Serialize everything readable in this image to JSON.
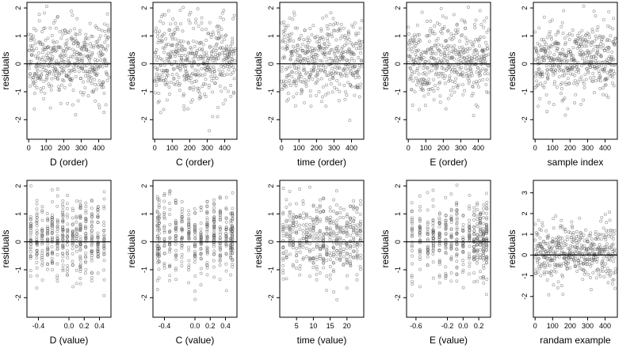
{
  "chart_data": [
    {
      "type": "scatter",
      "xlabel": "D (order)",
      "ylabel": "residuals",
      "xlim": [
        -10,
        470
      ],
      "ylim": [
        -2.7,
        2.2
      ],
      "xticks": [
        0,
        100,
        200,
        300,
        400
      ],
      "yticks": [
        -2,
        -1,
        0,
        1,
        2
      ],
      "hline": 0,
      "grid": false,
      "x_domain": "index",
      "point_count": 460,
      "seed": 11
    },
    {
      "type": "scatter",
      "xlabel": "C (order)",
      "ylabel": "residuals",
      "xlim": [
        -10,
        470
      ],
      "ylim": [
        -2.7,
        2.2
      ],
      "xticks": [
        0,
        100,
        200,
        300,
        400
      ],
      "yticks": [
        -2,
        -1,
        0,
        1,
        2
      ],
      "hline": 0,
      "grid": false,
      "x_domain": "index",
      "point_count": 460,
      "seed": 23
    },
    {
      "type": "scatter",
      "xlabel": "time (order)",
      "ylabel": "residuals",
      "xlim": [
        -10,
        470
      ],
      "ylim": [
        -2.7,
        2.2
      ],
      "xticks": [
        0,
        100,
        200,
        300,
        400
      ],
      "yticks": [
        -2,
        -1,
        0,
        1,
        2
      ],
      "hline": 0,
      "grid": false,
      "x_domain": "index",
      "point_count": 460,
      "seed": 37
    },
    {
      "type": "scatter",
      "xlabel": "E (order)",
      "ylabel": "residuals",
      "xlim": [
        -10,
        470
      ],
      "ylim": [
        -2.7,
        2.2
      ],
      "xticks": [
        0,
        100,
        200,
        300,
        400
      ],
      "yticks": [
        -2,
        -1,
        0,
        1,
        2
      ],
      "hline": 0,
      "grid": false,
      "x_domain": "index",
      "point_count": 460,
      "seed": 41
    },
    {
      "type": "scatter",
      "xlabel": "sample index",
      "ylabel": "residuals",
      "xlim": [
        -10,
        470
      ],
      "ylim": [
        -2.7,
        2.2
      ],
      "xticks": [
        0,
        100,
        200,
        300,
        400
      ],
      "yticks": [
        -2,
        -1,
        0,
        1,
        2
      ],
      "hline": 0,
      "grid": false,
      "x_domain": "index",
      "point_count": 460,
      "seed": 53
    },
    {
      "type": "scatter",
      "xlabel": "D (value)",
      "ylabel": "residuals",
      "xlim": [
        -0.55,
        0.55
      ],
      "ylim": [
        -2.7,
        2.2
      ],
      "xticks": [
        -0.4,
        0.0,
        0.2,
        0.4
      ],
      "xtick_labels": [
        "-0.4",
        "0.0",
        "0.2",
        "0.4"
      ],
      "yticks": [
        -2,
        -1,
        0,
        1,
        2
      ],
      "hline": 0,
      "grid": false,
      "x_domain": "levels",
      "x_levels": [
        -0.5,
        -0.42,
        -0.35,
        -0.28,
        -0.22,
        -0.15,
        -0.08,
        -0.02,
        0.05,
        0.1,
        0.15,
        0.22,
        0.3,
        0.38,
        0.46
      ],
      "point_count": 460,
      "seed": 61
    },
    {
      "type": "scatter",
      "xlabel": "C (value)",
      "ylabel": "residuals",
      "xlim": [
        -0.55,
        0.55
      ],
      "ylim": [
        -2.7,
        2.2
      ],
      "xticks": [
        -0.4,
        0.0,
        0.2,
        0.4
      ],
      "xtick_labels": [
        "-0.4",
        "0.0",
        "0.2",
        "0.4"
      ],
      "yticks": [
        -2,
        -1,
        0,
        1,
        2
      ],
      "hline": 0,
      "grid": false,
      "x_domain": "levels",
      "x_levels": [
        -0.49,
        -0.47,
        -0.4,
        -0.33,
        -0.25,
        -0.17,
        -0.08,
        0.0,
        0.08,
        0.16,
        0.25,
        0.33,
        0.41,
        0.47,
        0.49
      ],
      "point_count": 460,
      "seed": 71
    },
    {
      "type": "scatter",
      "xlabel": "time (value)",
      "ylabel": "residuals",
      "xlim": [
        0,
        25
      ],
      "ylim": [
        -2.7,
        2.2
      ],
      "xticks": [
        5,
        10,
        15,
        20
      ],
      "yticks": [
        -2,
        -1,
        0,
        1,
        2
      ],
      "hline": 0,
      "grid": false,
      "x_domain": "levels",
      "x_levels": [
        1,
        2,
        3,
        4,
        5,
        6,
        7,
        8,
        9,
        10,
        11,
        12,
        13,
        14,
        15,
        16,
        17,
        18,
        19,
        20,
        21,
        22,
        23,
        24
      ],
      "point_count": 460,
      "seed": 83
    },
    {
      "type": "scatter",
      "xlabel": "E (value)",
      "ylabel": "residuals",
      "xlim": [
        -0.72,
        0.35
      ],
      "ylim": [
        -2.7,
        2.2
      ],
      "xticks": [
        -0.6,
        -0.2,
        0.0,
        0.2
      ],
      "xtick_labels": [
        "-0.6",
        "-0.2",
        "0.0",
        "0.2"
      ],
      "yticks": [
        -2,
        -1,
        0,
        1,
        2
      ],
      "hline": 0,
      "grid": false,
      "x_domain": "levels",
      "x_levels": [
        -0.65,
        -0.55,
        -0.45,
        -0.38,
        -0.3,
        -0.22,
        -0.15,
        -0.08,
        0.0,
        0.08,
        0.14,
        0.18,
        0.22,
        0.26,
        0.3
      ],
      "point_count": 460,
      "seed": 97
    },
    {
      "type": "scatter",
      "xlabel": "randam example",
      "ylabel": "residuals",
      "xlim": [
        -10,
        470
      ],
      "ylim": [
        -3.0,
        3.6
      ],
      "xticks": [
        0,
        100,
        200,
        300,
        400
      ],
      "yticks": [
        -2,
        -1,
        0,
        1,
        2,
        3
      ],
      "hline": 0,
      "grid": false,
      "x_domain": "index",
      "point_count": 460,
      "seed": 109
    }
  ]
}
